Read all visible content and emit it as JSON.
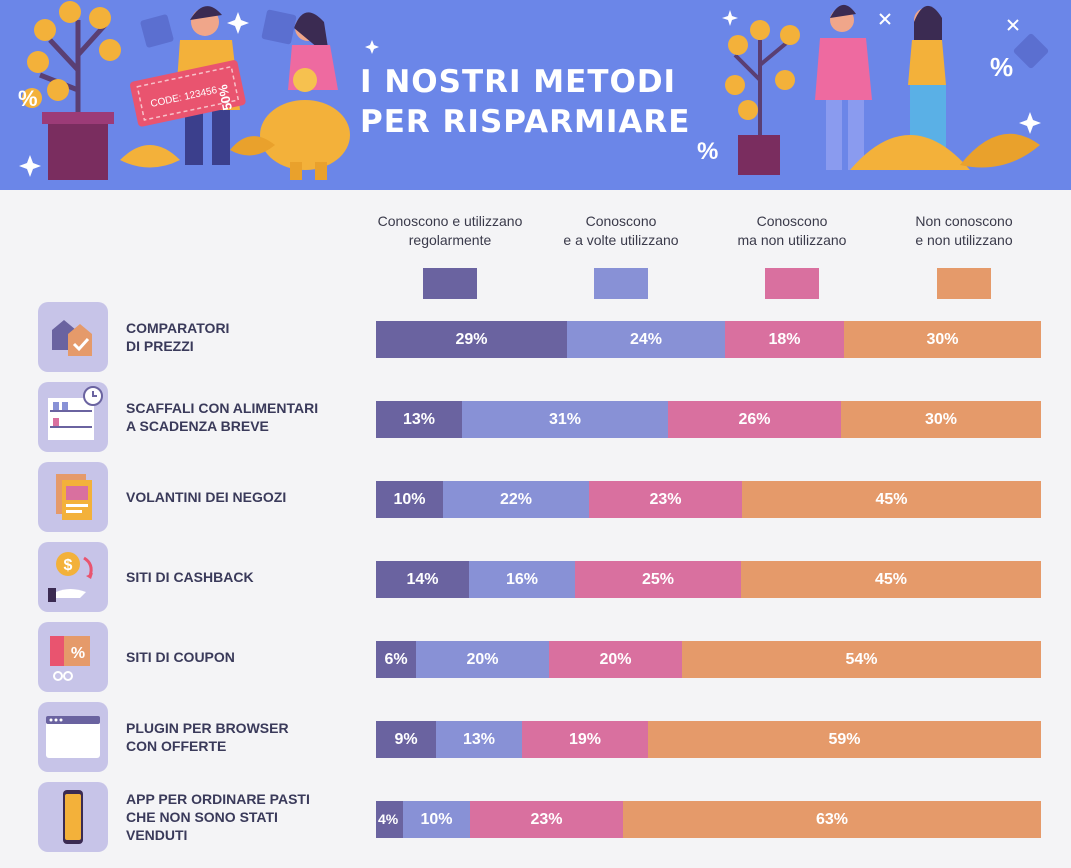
{
  "header": {
    "title_line1": "I NOSTRI METODI",
    "title_line2": "PER RISPARMIARE",
    "coupon_code": "CODE: 123456",
    "coupon_discount": "50%",
    "percent_sign": "%"
  },
  "colors": {
    "banner": "#6b86e8",
    "regular": "#6a63a0",
    "sometimes": "#8891d6",
    "known_unused": "#d9709f",
    "unknown": "#e59a6a",
    "icon_bg": "#c7c4e8"
  },
  "chart_data": {
    "type": "bar",
    "orientation": "horizontal",
    "stacked": true,
    "unit": "%",
    "title": "I NOSTRI METODI PER RISPARMIARE",
    "legend_position": "top",
    "categories": [
      {
        "line1": "COMPARATORI",
        "line2": "DI PREZZI",
        "line3": "",
        "icon": "price-tag-icon"
      },
      {
        "line1": "SCAFFALI CON ALIMENTARI",
        "line2": "A SCADENZA BREVE",
        "line3": "",
        "icon": "shelf-clock-icon"
      },
      {
        "line1": "VOLANTINI DEI NEGOZI",
        "line2": "",
        "line3": "",
        "icon": "flyer-icon"
      },
      {
        "line1": "SITI DI CASHBACK",
        "line2": "",
        "line3": "",
        "icon": "cashback-icon"
      },
      {
        "line1": "SITI DI COUPON",
        "line2": "",
        "line3": "",
        "icon": "coupon-scissors-icon"
      },
      {
        "line1": "PLUGIN PER BROWSER",
        "line2": "CON OFFERTE",
        "line3": "",
        "icon": "browser-window-icon"
      },
      {
        "line1": "APP PER ORDINARE PASTI",
        "line2": "CHE NON SONO STATI",
        "line3": "VENDUTI",
        "icon": "smartphone-icon"
      }
    ],
    "series": [
      {
        "key": "regular",
        "name_line1": "Conoscono e utilizzano",
        "name_line2": "regolarmente",
        "values": [
          29,
          13,
          10,
          14,
          6,
          9,
          4
        ]
      },
      {
        "key": "sometimes",
        "name_line1": "Conoscono",
        "name_line2": "e a volte utilizzano",
        "values": [
          24,
          31,
          22,
          16,
          20,
          13,
          10
        ]
      },
      {
        "key": "known_unused",
        "name_line1": "Conoscono",
        "name_line2": "ma non utilizzano",
        "values": [
          18,
          26,
          23,
          25,
          20,
          19,
          23
        ]
      },
      {
        "key": "unknown",
        "name_line1": "Non conoscono",
        "name_line2": "e non utilizzano",
        "values": [
          30,
          30,
          45,
          45,
          54,
          59,
          63
        ]
      }
    ]
  }
}
